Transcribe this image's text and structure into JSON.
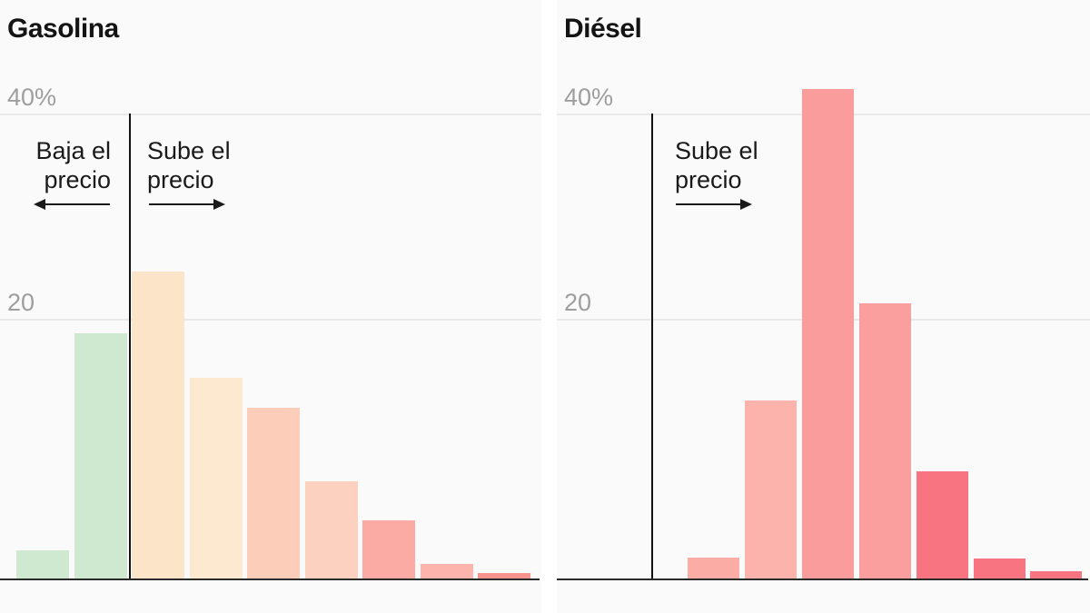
{
  "page": {
    "language": "es",
    "background_color": "#fafafa",
    "axis_color": "#2a2a2a",
    "gridline_color": "#e9e9e9",
    "tick_label_color": "#9e9e9e",
    "text_color": "#1a1a1a"
  },
  "chart_data": [
    {
      "type": "bar",
      "title": "Gasolina",
      "ylim": [
        0,
        45
      ],
      "grid": true,
      "legend": "none",
      "yticks": [
        {
          "label": "40%",
          "value": 40
        },
        {
          "label": "20",
          "value": 20
        }
      ],
      "annotations": [
        {
          "id": "baja",
          "line1": "Baja el",
          "line2": "precio",
          "arrow": "left"
        },
        {
          "id": "sube",
          "line1": "Sube el",
          "line2": "precio",
          "arrow": "right"
        }
      ],
      "bars": [
        {
          "value": 2.2,
          "side": "baja el precio",
          "color": "#cee9cf"
        },
        {
          "value": 18.9,
          "side": "baja el precio",
          "color": "#cee9cf"
        },
        {
          "value": 24.6,
          "side": "sube el precio",
          "color": "#fce4c9"
        },
        {
          "value": 15.5,
          "side": "sube el precio",
          "color": "#fde8d0"
        },
        {
          "value": 13.2,
          "side": "sube el precio",
          "color": "#fcceba"
        },
        {
          "value": 7.5,
          "side": "sube el precio",
          "color": "#fcd1bf"
        },
        {
          "value": 4.5,
          "side": "sube el precio",
          "color": "#fbaba3"
        },
        {
          "value": 1.2,
          "side": "sube el precio",
          "color": "#fcb4ac"
        },
        {
          "value": 0.5,
          "side": "sube el precio",
          "color": "#f9928d"
        }
      ]
    },
    {
      "type": "bar",
      "title": "Diésel",
      "ylim": [
        0,
        45
      ],
      "grid": true,
      "legend": "none",
      "yticks": [
        {
          "label": "40%",
          "value": 40
        },
        {
          "label": "20",
          "value": 20
        }
      ],
      "annotations": [
        {
          "id": "sube",
          "line1": "Sube el",
          "line2": "precio",
          "arrow": "right"
        }
      ],
      "bars": [
        {
          "value": 1.7,
          "side": "sube el precio",
          "color": "#fbaca4"
        },
        {
          "value": 13.7,
          "side": "sube el precio",
          "color": "#fbb3ab"
        },
        {
          "value": 42.4,
          "side": "sube el precio",
          "color": "#fb9c9c"
        },
        {
          "value": 21.5,
          "side": "sube el precio",
          "color": "#fb9e9e"
        },
        {
          "value": 8.3,
          "side": "sube el precio",
          "color": "#f87480"
        },
        {
          "value": 1.6,
          "side": "sube el precio",
          "color": "#f87480"
        },
        {
          "value": 0.6,
          "side": "sube el precio",
          "color": "#f87480"
        }
      ]
    }
  ]
}
